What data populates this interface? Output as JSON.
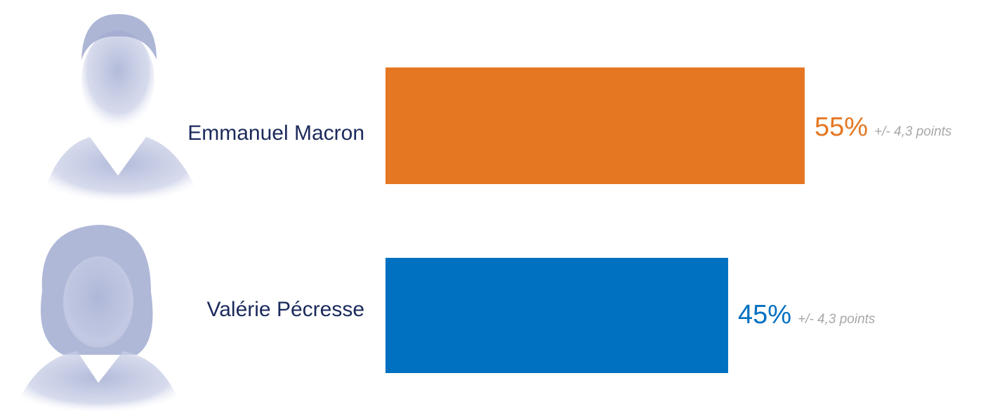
{
  "chart_data": {
    "type": "bar",
    "orientation": "horizontal",
    "categories": [
      "Emmanuel Macron",
      "Valérie Pécresse"
    ],
    "values": [
      55,
      45
    ],
    "value_labels": [
      "55%",
      "45%"
    ],
    "margin_labels": [
      "+/- 4,3 points",
      "+/- 4,3 points"
    ],
    "colors": [
      "#e57722",
      "#0070c0"
    ],
    "xlim": [
      0,
      55
    ],
    "grid": false,
    "legend": "none"
  },
  "colors": {
    "name_text": "#1b2a5c",
    "portrait_tint": "#b4bcdb",
    "margin_text": "#a8a8a8"
  },
  "portraits": [
    "portrait-icon",
    "portrait-icon"
  ]
}
